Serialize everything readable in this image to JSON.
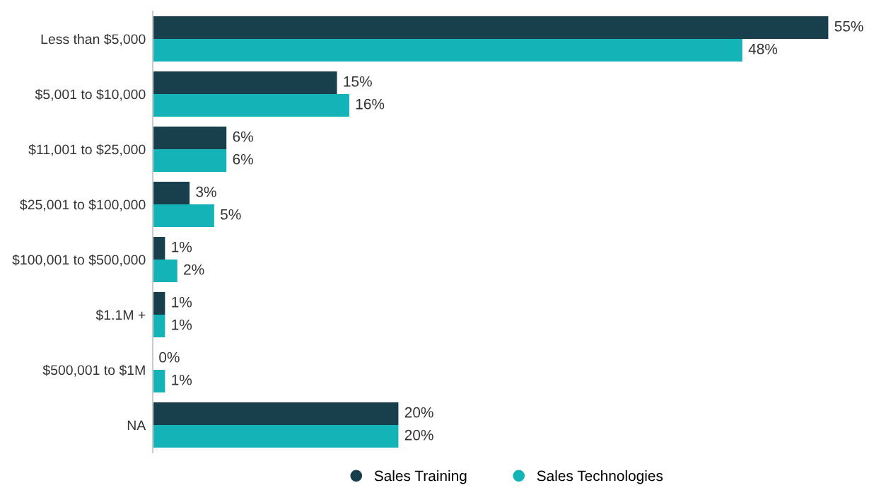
{
  "chart_data": {
    "type": "bar",
    "orientation": "horizontal",
    "categories": [
      "Less than $5,000",
      "$5,001 to $10,000",
      "$11,001 to $25,000",
      "$25,001 to $100,000",
      "$100,001 to $500,000",
      "$1.1M +",
      "$500,001 to $1M",
      "NA"
    ],
    "series": [
      {
        "name": "Sales Training",
        "color": "#173f4c",
        "values": [
          55,
          15,
          6,
          3,
          1,
          1,
          0,
          20
        ],
        "value_labels": [
          "55%",
          "15%",
          "6%",
          "3%",
          "1%",
          "1%",
          "0%",
          "20%"
        ]
      },
      {
        "name": "Sales Technologies",
        "color": "#13b3b8",
        "values": [
          48,
          16,
          6,
          5,
          2,
          1,
          1,
          20
        ],
        "value_labels": [
          "48%",
          "16%",
          "6%",
          "5%",
          "2%",
          "1%",
          "1%",
          "20%"
        ]
      }
    ],
    "legend": "bottom",
    "grid": false
  }
}
